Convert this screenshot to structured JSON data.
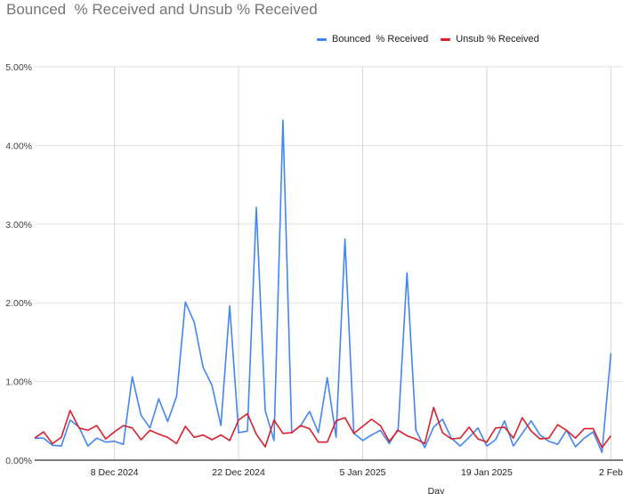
{
  "chart_data": {
    "type": "line",
    "title": "Bounced  % Received and Unsub % Received",
    "xlabel": "Day",
    "ylabel": "",
    "ylim": [
      0,
      5
    ],
    "grid": true,
    "legend_position": "top-right",
    "y_ticks": [
      "0.00%",
      "1.00%",
      "2.00%",
      "3.00%",
      "4.00%",
      "5.00%"
    ],
    "x_ticks": [
      {
        "date": "2024-12-08",
        "label": "8 Dec 2024"
      },
      {
        "date": "2024-12-22",
        "label": "22 Dec 2024"
      },
      {
        "date": "2025-01-05",
        "label": "5 Jan 2025"
      },
      {
        "date": "2025-01-19",
        "label": "19 Jan 2025"
      },
      {
        "date": "2025-02-02",
        "label": "2 Feb"
      }
    ],
    "x": [
      "2024-11-29",
      "2024-11-30",
      "2024-12-01",
      "2024-12-02",
      "2024-12-03",
      "2024-12-04",
      "2024-12-05",
      "2024-12-06",
      "2024-12-07",
      "2024-12-08",
      "2024-12-09",
      "2024-12-10",
      "2024-12-11",
      "2024-12-12",
      "2024-12-13",
      "2024-12-14",
      "2024-12-15",
      "2024-12-16",
      "2024-12-17",
      "2024-12-18",
      "2024-12-19",
      "2024-12-20",
      "2024-12-21",
      "2024-12-22",
      "2024-12-23",
      "2024-12-24",
      "2024-12-25",
      "2024-12-26",
      "2024-12-27",
      "2024-12-28",
      "2024-12-29",
      "2024-12-30",
      "2024-12-31",
      "2025-01-01",
      "2025-01-02",
      "2025-01-03",
      "2025-01-04",
      "2025-01-05",
      "2025-01-06",
      "2025-01-07",
      "2025-01-08",
      "2025-01-09",
      "2025-01-10",
      "2025-01-11",
      "2025-01-12",
      "2025-01-13",
      "2025-01-14",
      "2025-01-15",
      "2025-01-16",
      "2025-01-17",
      "2025-01-18",
      "2025-01-19",
      "2025-01-20",
      "2025-01-21",
      "2025-01-22",
      "2025-01-23",
      "2025-01-24",
      "2025-01-25",
      "2025-01-26",
      "2025-01-27",
      "2025-01-28",
      "2025-01-29",
      "2025-01-30",
      "2025-01-31",
      "2025-02-01",
      "2025-02-02"
    ],
    "series": [
      {
        "name": "Bounced  % Received",
        "color": "#4285f4",
        "values": [
          0.28,
          0.28,
          0.19,
          0.18,
          0.51,
          0.42,
          0.18,
          0.28,
          0.23,
          0.24,
          0.2,
          1.06,
          0.57,
          0.41,
          0.78,
          0.49,
          0.81,
          2.01,
          1.75,
          1.18,
          0.95,
          0.44,
          1.96,
          0.35,
          0.37,
          3.21,
          0.63,
          0.25,
          4.32,
          0.35,
          0.44,
          0.62,
          0.35,
          1.05,
          0.29,
          2.81,
          0.34,
          0.25,
          0.32,
          0.38,
          0.21,
          0.4,
          2.38,
          0.38,
          0.16,
          0.42,
          0.52,
          0.28,
          0.18,
          0.29,
          0.41,
          0.18,
          0.26,
          0.5,
          0.18,
          0.34,
          0.5,
          0.32,
          0.24,
          0.2,
          0.38,
          0.17,
          0.28,
          0.36,
          0.1,
          1.36
        ]
      },
      {
        "name": "Unsub % Received",
        "color": "#db1f2b",
        "values": [
          0.28,
          0.36,
          0.21,
          0.29,
          0.63,
          0.41,
          0.38,
          0.44,
          0.27,
          0.36,
          0.44,
          0.41,
          0.26,
          0.38,
          0.33,
          0.29,
          0.21,
          0.43,
          0.29,
          0.32,
          0.26,
          0.32,
          0.25,
          0.51,
          0.59,
          0.33,
          0.17,
          0.51,
          0.34,
          0.35,
          0.44,
          0.4,
          0.23,
          0.23,
          0.5,
          0.54,
          0.34,
          0.43,
          0.52,
          0.44,
          0.24,
          0.38,
          0.31,
          0.27,
          0.21,
          0.67,
          0.35,
          0.27,
          0.28,
          0.42,
          0.27,
          0.23,
          0.41,
          0.42,
          0.28,
          0.54,
          0.37,
          0.27,
          0.28,
          0.45,
          0.38,
          0.28,
          0.4,
          0.4,
          0.16,
          0.31
        ]
      }
    ]
  }
}
